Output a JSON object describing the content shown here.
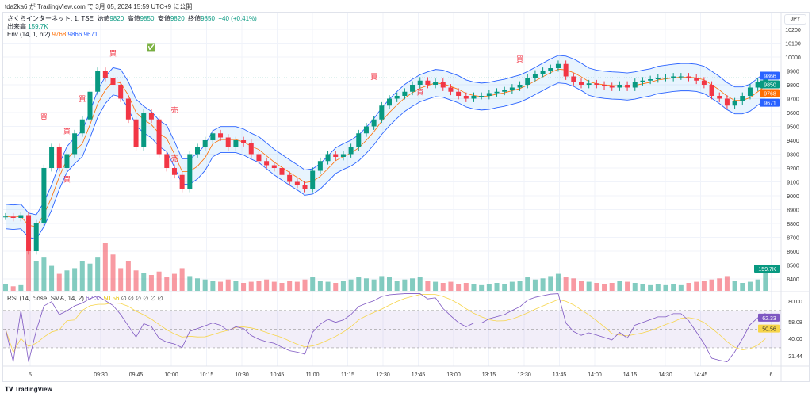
{
  "publish_line": "tda2ka6 が TradingView.com で 3月 05, 2024 15:59 UTC+9 に公開",
  "legend": {
    "symbol": "さくらインターネット, 1, TSE",
    "open_label": "始値",
    "open": "9820",
    "high_label": "高値",
    "high": "9850",
    "low_label": "安値",
    "low": "9820",
    "close_label": "終値",
    "close": "9850",
    "change": "+40 (+0.41%)",
    "volume_label": "出来高",
    "volume": "159.7K",
    "env_label": "Env (14, 1, hl2)",
    "env_mid": "9768",
    "env_upper": "9866",
    "env_lower": "9671"
  },
  "rsi_legend": {
    "label": "RSI (14, close, SMA, 14, 2)",
    "rsi": "62.33",
    "sma": "50.56",
    "extra": "∅ ∅ ∅ ∅ ∅ ∅"
  },
  "currency_button": "JPY",
  "footer": "TradingView",
  "colors": {
    "up": "#089981",
    "down": "#f23645",
    "env_mid": "#ff6d00",
    "env_band": "#2962ff",
    "rsi": "#7e57c2",
    "rsi_ma": "#f7d54a"
  },
  "chart_data": {
    "type": "candlestick",
    "price_axis": {
      "ticks": [
        "10200",
        "10100",
        "10000",
        "9900",
        "9800",
        "9700",
        "9600",
        "9500",
        "9400",
        "9300",
        "9200",
        "9100",
        "9000",
        "8900",
        "8800",
        "8700",
        "8600",
        "8500",
        "8400"
      ],
      "range": [
        8400,
        10200
      ]
    },
    "price_labels": [
      {
        "text": "9866",
        "color": "#2962ff",
        "value": 9866
      },
      {
        "text": "9850",
        "color": "#089981",
        "value": 9850
      },
      {
        "text": "9768",
        "color": "#ff6d00",
        "value": 9768
      },
      {
        "text": "9671",
        "color": "#2962ff",
        "value": 9671
      }
    ],
    "volume_label": {
      "text": "159.7K",
      "color": "#089981"
    },
    "rsi_axis": {
      "ticks": [
        {
          "text": "80.00",
          "value": 80
        },
        {
          "text": "58.08",
          "value": 58.08
        },
        {
          "text": "40.00",
          "value": 40
        },
        {
          "text": "21.44",
          "value": 21.44
        }
      ],
      "labels": [
        {
          "text": "62.33",
          "color": "#7e57c2",
          "value": 62.33
        },
        {
          "text": "50.56",
          "color": "#f7d54a",
          "value": 50.56
        }
      ]
    },
    "time_labels": [
      {
        "text": "5",
        "slot": 0
      },
      {
        "text": "09:30",
        "slot": 2
      },
      {
        "text": "09:45",
        "slot": 3
      },
      {
        "text": "10:00",
        "slot": 4
      },
      {
        "text": "10:15",
        "slot": 5
      },
      {
        "text": "10:30",
        "slot": 6
      },
      {
        "text": "10:45",
        "slot": 7
      },
      {
        "text": "11:00",
        "slot": 8
      },
      {
        "text": "11:15",
        "slot": 9
      },
      {
        "text": "12:30",
        "slot": 10
      },
      {
        "text": "12:45",
        "slot": 11
      },
      {
        "text": "13:00",
        "slot": 12
      },
      {
        "text": "13:15",
        "slot": 13
      },
      {
        "text": "13:30",
        "slot": 14
      },
      {
        "text": "13:45",
        "slot": 15
      },
      {
        "text": "14:00",
        "slot": 16
      },
      {
        "text": "14:15",
        "slot": 17
      },
      {
        "text": "14:30",
        "slot": 18
      },
      {
        "text": "14:45",
        "slot": 19
      },
      {
        "text": "6",
        "slot": 21
      }
    ],
    "closes": [
      8850,
      8840,
      8860,
      8600,
      8800,
      9200,
      9350,
      9200,
      9300,
      9450,
      9550,
      9750,
      9900,
      9850,
      9800,
      9700,
      9550,
      9350,
      9600,
      9550,
      9300,
      9200,
      9150,
      9050,
      9300,
      9350,
      9400,
      9450,
      9420,
      9350,
      9400,
      9380,
      9300,
      9250,
      9220,
      9200,
      9150,
      9100,
      9080,
      9050,
      9180,
      9250,
      9300,
      9280,
      9300,
      9350,
      9450,
      9500,
      9550,
      9650,
      9700,
      9720,
      9750,
      9800,
      9830,
      9800,
      9820,
      9780,
      9750,
      9720,
      9700,
      9720,
      9720,
      9740,
      9750,
      9760,
      9780,
      9800,
      9850,
      9880,
      9900,
      9920,
      9950,
      9860,
      9820,
      9800,
      9810,
      9800,
      9790,
      9780,
      9800,
      9780,
      9820,
      9830,
      9840,
      9850,
      9850,
      9860,
      9860,
      9850,
      9830,
      9800,
      9720,
      9700,
      9650,
      9680,
      9720,
      9780,
      9820,
      9850
    ],
    "volumes": [
      60,
      40,
      50,
      380,
      260,
      300,
      220,
      150,
      180,
      200,
      260,
      240,
      300,
      420,
      320,
      200,
      260,
      180,
      160,
      140,
      170,
      120,
      150,
      200,
      130,
      110,
      100,
      90,
      80,
      100,
      90,
      70,
      80,
      90,
      100,
      80,
      70,
      90,
      80,
      100,
      120,
      90,
      80,
      70,
      90,
      100,
      120,
      110,
      100,
      130,
      120,
      90,
      100,
      110,
      120,
      90,
      80,
      70,
      80,
      60,
      70,
      60,
      50,
      60,
      70,
      60,
      80,
      90,
      120,
      100,
      110,
      130,
      150,
      120,
      110,
      90,
      80,
      70,
      60,
      70,
      90,
      80,
      70,
      60,
      50,
      60,
      50,
      60,
      50,
      70,
      80,
      90,
      100,
      110,
      130,
      90,
      70,
      80,
      100,
      159.7
    ],
    "signals": [
      {
        "text": "買",
        "index": 14,
        "price": 10010
      },
      {
        "text": "買",
        "index": 10,
        "price": 9680
      },
      {
        "text": "買",
        "index": 5,
        "price": 9550
      },
      {
        "text": "買",
        "index": 8,
        "price": 9450
      },
      {
        "text": "買",
        "index": 8,
        "price": 9100
      },
      {
        "text": "買",
        "index": 48,
        "price": 9840
      },
      {
        "text": "買",
        "index": 54,
        "price": 9730
      },
      {
        "text": "買",
        "index": 67,
        "price": 9965
      },
      {
        "text": "売",
        "index": 22,
        "price": 9600
      },
      {
        "text": "売",
        "index": 22,
        "price": 9250
      }
    ],
    "check_marker": {
      "text": "✅",
      "index": 19,
      "price": 10055
    }
  }
}
